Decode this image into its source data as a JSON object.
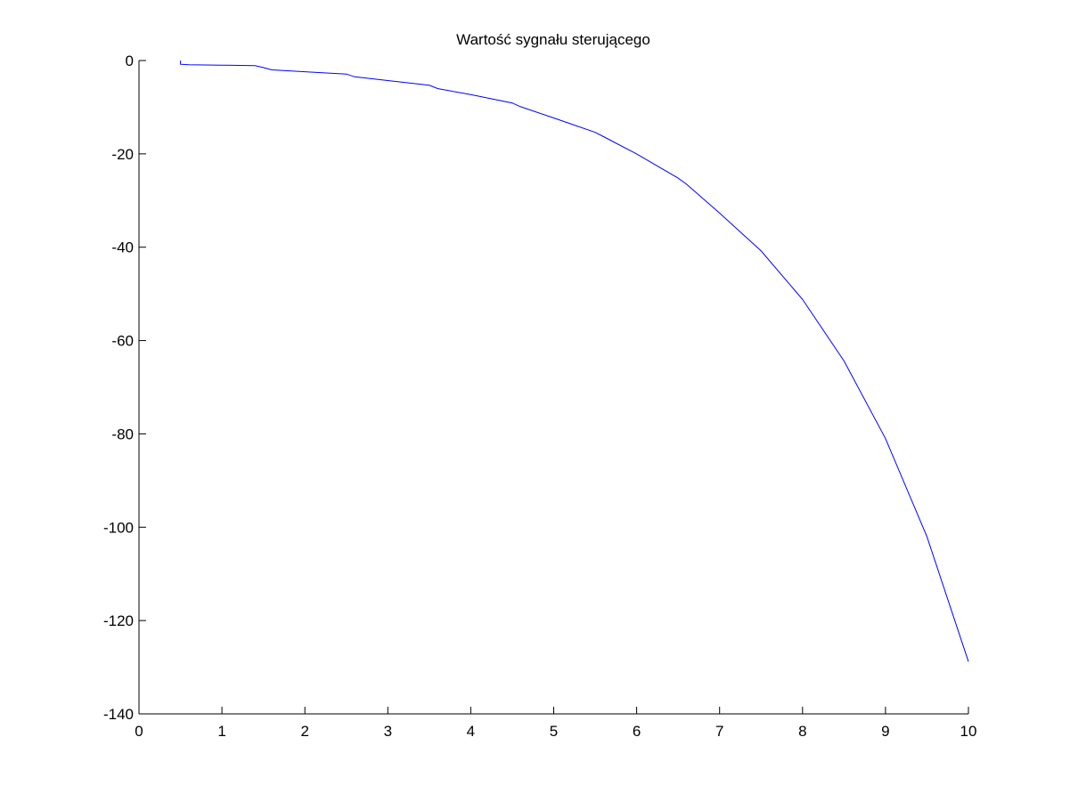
{
  "chart_data": {
    "type": "line",
    "title": "Wartość sygnału sterującego",
    "xlabel": "",
    "ylabel": "",
    "xlim": [
      0,
      10
    ],
    "ylim": [
      -140,
      0
    ],
    "xticks": [
      0,
      1,
      2,
      3,
      4,
      5,
      6,
      7,
      8,
      9,
      10
    ],
    "yticks": [
      0,
      -20,
      -40,
      -60,
      -80,
      -100,
      -120,
      -140
    ],
    "grid": false,
    "legend": "none",
    "series": [
      {
        "color": "#0000ff",
        "x": [
          0.5,
          0.5,
          0.6,
          1.0,
          1.4,
          1.5,
          1.6,
          2.0,
          2.5,
          2.6,
          3.0,
          3.5,
          3.6,
          4.0,
          4.5,
          4.6,
          5.0,
          5.5,
          5.6,
          6.0,
          6.5,
          6.6,
          7.0,
          7.5,
          8.0,
          8.5,
          9.0,
          9.5,
          10.0
        ],
        "y": [
          0.0,
          -0.8,
          -0.9,
          -1.0,
          -1.1,
          -1.5,
          -2.0,
          -2.4,
          -2.9,
          -3.5,
          -4.3,
          -5.3,
          -6.0,
          -7.3,
          -9.1,
          -9.9,
          -12.3,
          -15.4,
          -16.3,
          -20.0,
          -25.2,
          -26.5,
          -32.7,
          -40.8,
          -51.2,
          -64.4,
          -81.0,
          -102.0,
          -128.8
        ]
      }
    ]
  }
}
